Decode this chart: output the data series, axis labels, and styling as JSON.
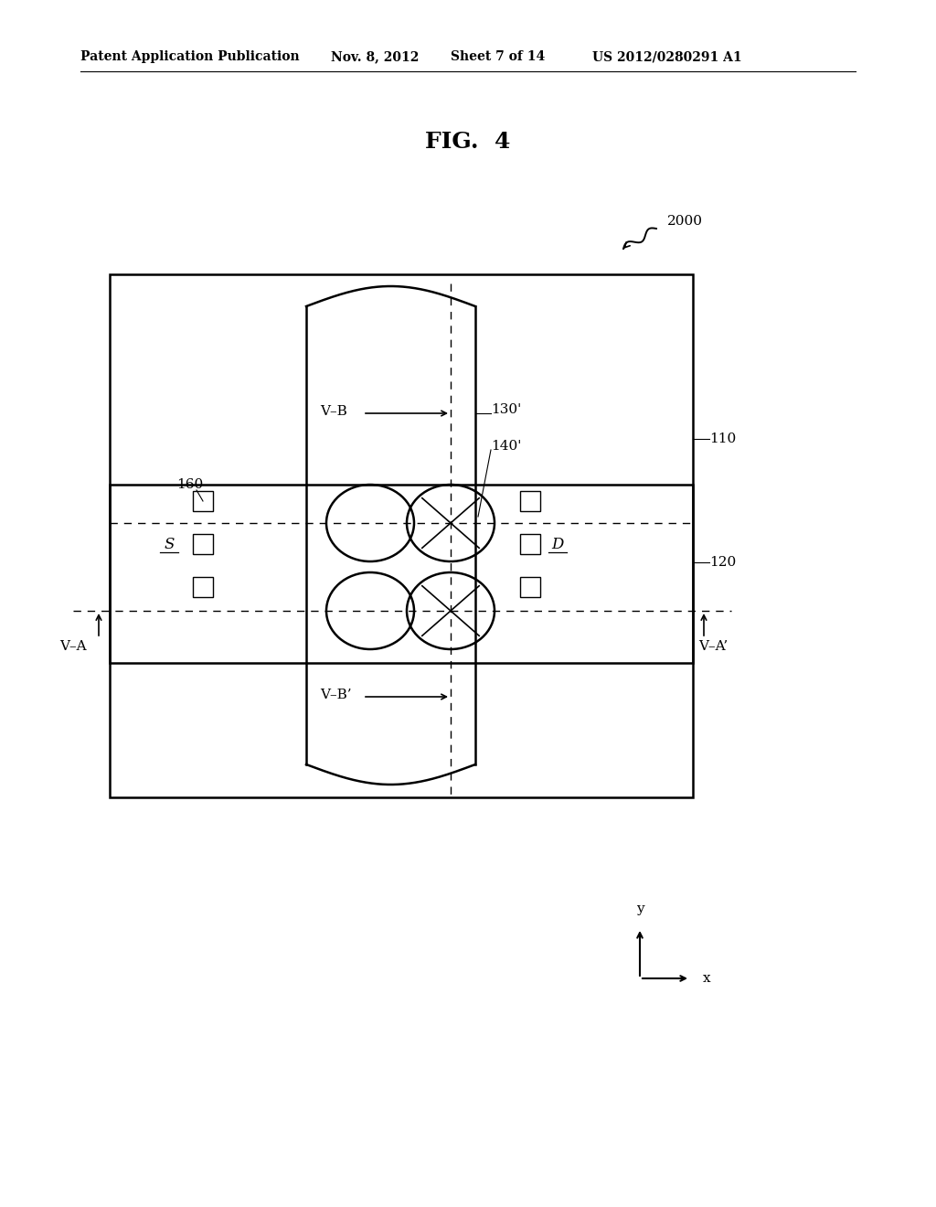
{
  "bg_color": "#ffffff",
  "line_color": "#000000",
  "header_text": "Patent Application Publication",
  "header_date": "Nov. 8, 2012",
  "header_sheet": "Sheet 7 of 14",
  "header_patent": "US 2012/0280291 A1",
  "fig_title": "FIG.  4"
}
